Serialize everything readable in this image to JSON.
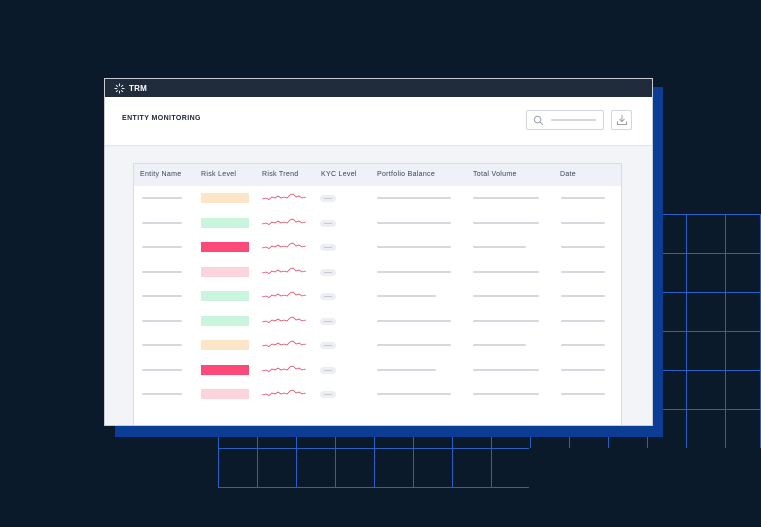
{
  "brand": {
    "logo_text": "TRM"
  },
  "header": {
    "title": "ENTITY MONITORING"
  },
  "toolbar": {
    "search_icon": "search-icon",
    "download_icon": "download-icon"
  },
  "colors": {
    "risk_orange": "#fde6c8",
    "risk_green": "#c9f5df",
    "risk_red": "#fb4a77",
    "risk_pink": "#fdd3dc",
    "sparkline": "#e04a6a"
  },
  "table": {
    "columns": [
      "Entity Name",
      "Risk Level",
      "Risk Trend",
      "KYC Level",
      "Portfolio Balance",
      "Total Volume",
      "Date"
    ],
    "rows": [
      {
        "risk": "orange"
      },
      {
        "risk": "green"
      },
      {
        "risk": "red"
      },
      {
        "risk": "pink"
      },
      {
        "risk": "green"
      },
      {
        "risk": "green"
      },
      {
        "risk": "orange"
      },
      {
        "risk": "red"
      },
      {
        "risk": "pink"
      }
    ]
  }
}
